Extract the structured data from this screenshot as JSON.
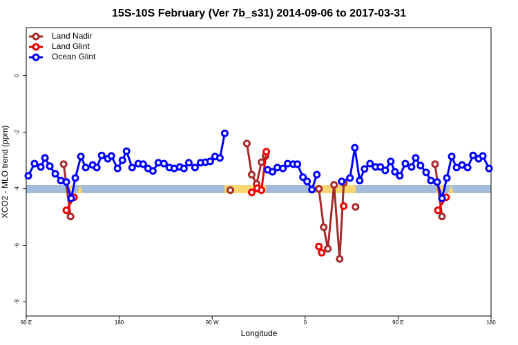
{
  "chart_data": {
    "type": "line",
    "title": "15S-10S February (Ver 7b_s31)   2014-09-06 to 2017-03-31",
    "x_label": "Longitude",
    "y_label": "XCO2 - MLO trend (ppm)",
    "xlim": [
      90,
      540
    ],
    "ylim": [
      -8.5,
      1.7
    ],
    "xticks": [
      {
        "value": 90,
        "label": "90 E"
      },
      180,
      {
        "value": 270,
        "label": "90 W"
      },
      {
        "value": 360,
        "label": "0"
      },
      {
        "value": 450,
        "label": "90 E"
      },
      {
        "value": 540,
        "label": "180"
      }
    ],
    "yticks": [
      0,
      -2,
      -4,
      -6,
      -8
    ],
    "legend": "top-left",
    "series": [
      {
        "name": "Land Nadir",
        "color": "#a52a2a",
        "x": [
          126.2,
          132.9,
          null,
          287.6,
          null,
          303.6,
          308.3,
          313.0,
          317.7,
          321.7,
          null,
          373.3,
          378.0,
          382.0,
          388.0,
          393.4,
          397.4,
          null,
          408.8,
          null,
          485.8,
          492.5
        ],
        "values": [
          -3.13,
          -4.98,
          null,
          -4.05,
          null,
          -2.4,
          -3.5,
          -3.83,
          -3.06,
          -2.84,
          null,
          -4.0,
          -5.36,
          -6.12,
          -3.86,
          -6.48,
          -3.79,
          null,
          -4.64,
          null,
          -3.13,
          -4.98
        ]
      },
      {
        "name": "Land Glint",
        "color": "#ee0000",
        "x": [
          128.8,
          136.2,
          null,
          308.3,
          313.7,
          317.7,
          322.4,
          null,
          373.3,
          376.0,
          null,
          397.4,
          null,
          488.5,
          496.5
        ],
        "values": [
          -4.76,
          -4.3,
          null,
          -4.13,
          -3.98,
          -4.05,
          -2.69,
          null,
          -6.04,
          -6.26,
          null,
          -4.61,
          null,
          -4.76,
          -4.3
        ]
      },
      {
        "name": "Ocean Glint",
        "color": "#0000ff",
        "x": [
          92.0,
          98.0,
          104.1,
          108.1,
          112.8,
          118.1,
          123.5,
          128.8,
          133.5,
          137.5,
          142.9,
          147.6,
          154.3,
          158.3,
          163.0,
          169.0,
          172.4,
          178.4,
          183.1,
          187.1,
          192.5,
          198.5,
          203.2,
          207.9,
          212.6,
          217.9,
          223.3,
          228.6,
          233.3,
          238.7,
          242.7,
          247.4,
          253.4,
          258.8,
          263.5,
          268.1,
          272.8,
          277.5,
          282.2,
          null,
          323.7,
          328.4,
          333.1,
          338.5,
          343.1,
          348.5,
          352.5,
          357.9,
          361.9,
          366.6,
          371.3,
          null,
          395.4,
          403.4,
          408.1,
          412.8,
          417.5,
          422.8,
          428.2,
          432.9,
          437.6,
          442.9,
          446.9,
          451.6,
          457.0,
          463.0,
          467.0,
          471.7,
          477.1,
          481.8,
          487.8,
          492.5,
          497.2,
          501.9,
          506.6,
          511.9,
          517.3,
          522.6,
          528.0,
          532.0,
          538.0
        ],
        "values": [
          -3.54,
          -3.11,
          -3.23,
          -2.91,
          -3.2,
          -3.47,
          -3.71,
          -3.76,
          -4.34,
          -3.62,
          -2.86,
          -3.25,
          -3.16,
          -3.25,
          -2.82,
          -2.94,
          -2.84,
          -3.28,
          -2.99,
          -2.67,
          -3.25,
          -3.11,
          -3.13,
          -3.28,
          -3.37,
          -3.08,
          -3.11,
          -3.25,
          -3.28,
          -3.23,
          -3.28,
          -3.08,
          -3.25,
          -3.08,
          -3.06,
          -3.03,
          -2.86,
          -2.91,
          -2.04,
          null,
          -3.33,
          -3.4,
          -3.25,
          -3.28,
          -3.11,
          -3.13,
          -3.13,
          -3.59,
          -3.74,
          -4.03,
          -3.5,
          null,
          -3.74,
          -3.62,
          -2.55,
          -3.71,
          -3.3,
          -3.11,
          -3.23,
          -3.23,
          -3.35,
          -3.03,
          -3.4,
          -3.54,
          -3.11,
          -3.23,
          -2.91,
          -3.18,
          -3.42,
          -3.71,
          -3.76,
          -4.34,
          -3.62,
          -2.86,
          -3.25,
          -3.16,
          -3.25,
          -2.82,
          -2.94,
          -2.84,
          -3.28
        ]
      }
    ]
  }
}
